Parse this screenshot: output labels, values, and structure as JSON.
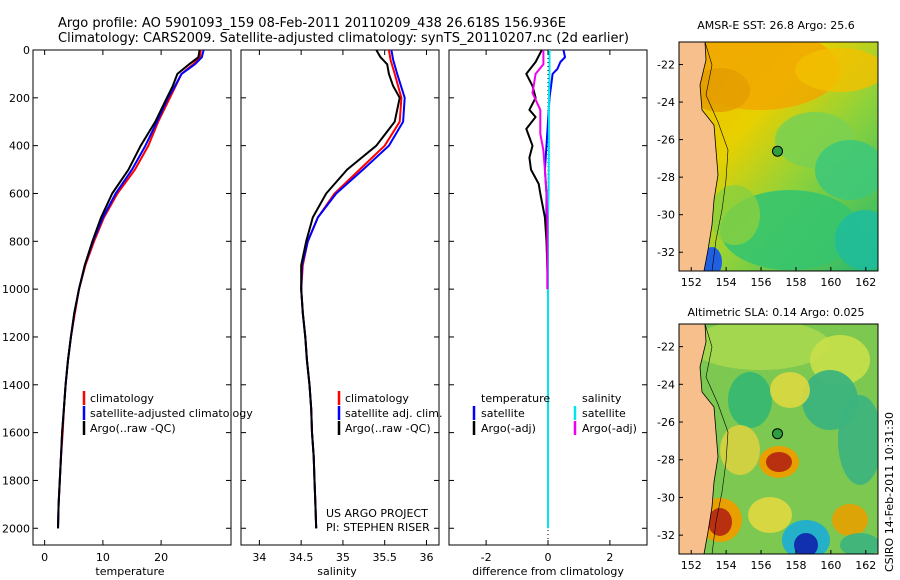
{
  "header": {
    "line1": "Argo profile: AO 5901093_159 08-Feb-2011 20110209_438 26.618S 156.936E",
    "line2": "Climatology: CARS2009. Satellite-adjusted climatology: synTS_20110207.nc (2d earlier)"
  },
  "credits": {
    "line1": "US ARGO PROJECT",
    "line2": "PI: STEPHEN RISER"
  },
  "timestamp": "CSIRO 14-Feb-2011 10:31:30",
  "colors": {
    "climatology": "#ff0000",
    "satellite": "#0000ff",
    "argo": "#000000",
    "satellite_salinity": "#00e5ee",
    "argo_salinity_diff": "#ee00ee",
    "land": "#f6bf8c"
  },
  "chart_data": [
    {
      "type": "line",
      "name": "temperature-profile",
      "xlabel": "temperature",
      "ylabel": "",
      "xlim": [
        -2,
        32
      ],
      "ylim": [
        2070,
        0
      ],
      "xticks": [
        0,
        10,
        20
      ],
      "yticks": [
        0,
        200,
        400,
        600,
        800,
        1000,
        1200,
        1400,
        1600,
        1800,
        2000
      ],
      "legend": [
        "climatology",
        "satellite-adjusted climatology",
        "Argo(..raw -QC)"
      ],
      "series": [
        {
          "name": "climatology",
          "color": "#ff0000",
          "points": [
            [
              26.8,
              0
            ],
            [
              26.7,
              30
            ],
            [
              25.5,
              60
            ],
            [
              23.5,
              100
            ],
            [
              22.5,
              150
            ],
            [
              21.5,
              200
            ],
            [
              19.5,
              300
            ],
            [
              17.8,
              400
            ],
            [
              15.5,
              500
            ],
            [
              12.5,
              600
            ],
            [
              10.2,
              700
            ],
            [
              8.5,
              800
            ],
            [
              7.0,
              900
            ],
            [
              5.9,
              1000
            ],
            [
              5.2,
              1100
            ],
            [
              4.5,
              1200
            ],
            [
              4.0,
              1300
            ],
            [
              3.6,
              1400
            ],
            [
              3.3,
              1500
            ],
            [
              3.1,
              1600
            ],
            [
              2.8,
              1700
            ],
            [
              2.6,
              1800
            ],
            [
              2.4,
              1900
            ],
            [
              2.3,
              2000
            ]
          ]
        },
        {
          "name": "satellite-adjusted climatology",
          "color": "#0000ff",
          "points": [
            [
              27.3,
              0
            ],
            [
              27.0,
              30
            ],
            [
              25.8,
              60
            ],
            [
              23.5,
              100
            ],
            [
              22.4,
              150
            ],
            [
              21.2,
              200
            ],
            [
              19.3,
              300
            ],
            [
              17.3,
              400
            ],
            [
              15.0,
              500
            ],
            [
              12.2,
              600
            ],
            [
              10.0,
              700
            ],
            [
              8.3,
              800
            ],
            [
              6.9,
              900
            ],
            [
              5.9,
              1000
            ],
            [
              5.1,
              1100
            ],
            [
              4.5,
              1200
            ],
            [
              4.0,
              1300
            ],
            [
              3.6,
              1400
            ],
            [
              3.3,
              1500
            ],
            [
              3.0,
              1600
            ],
            [
              2.8,
              1700
            ],
            [
              2.6,
              1800
            ],
            [
              2.4,
              1900
            ],
            [
              2.3,
              2000
            ]
          ]
        },
        {
          "name": "Argo(..raw -QC)",
          "color": "#000000",
          "points": [
            [
              26.6,
              0
            ],
            [
              26.4,
              30
            ],
            [
              24.8,
              60
            ],
            [
              22.8,
              100
            ],
            [
              22.0,
              150
            ],
            [
              21.0,
              200
            ],
            [
              19.0,
              300
            ],
            [
              16.5,
              400
            ],
            [
              14.4,
              500
            ],
            [
              11.6,
              600
            ],
            [
              9.7,
              700
            ],
            [
              8.2,
              800
            ],
            [
              6.9,
              900
            ],
            [
              5.9,
              1000
            ],
            [
              5.1,
              1100
            ],
            [
              4.5,
              1200
            ],
            [
              4.0,
              1300
            ],
            [
              3.6,
              1400
            ],
            [
              3.3,
              1500
            ],
            [
              3.0,
              1600
            ],
            [
              2.8,
              1700
            ],
            [
              2.6,
              1800
            ],
            [
              2.4,
              1900
            ],
            [
              2.3,
              2000
            ]
          ]
        }
      ]
    },
    {
      "type": "line",
      "name": "salinity-profile",
      "xlabel": "salinity",
      "ylabel": "",
      "xlim": [
        33.78,
        36.15
      ],
      "ylim": [
        2070,
        0
      ],
      "xticks": [
        34,
        34.5,
        35,
        35.5,
        36
      ],
      "legend": [
        "climatology",
        "satellite adj. clim.",
        "Argo(..raw -QC)"
      ],
      "series": [
        {
          "name": "climatology",
          "color": "#ff0000",
          "points": [
            [
              35.55,
              0
            ],
            [
              35.57,
              40
            ],
            [
              35.62,
              100
            ],
            [
              35.7,
              200
            ],
            [
              35.68,
              300
            ],
            [
              35.5,
              400
            ],
            [
              35.2,
              500
            ],
            [
              34.9,
              600
            ],
            [
              34.7,
              700
            ],
            [
              34.58,
              800
            ],
            [
              34.52,
              900
            ],
            [
              34.5,
              1000
            ],
            [
              34.52,
              1100
            ],
            [
              34.55,
              1200
            ],
            [
              34.57,
              1300
            ],
            [
              34.6,
              1400
            ],
            [
              34.62,
              1500
            ],
            [
              34.63,
              1600
            ],
            [
              34.65,
              1700
            ],
            [
              34.66,
              1800
            ],
            [
              34.67,
              1900
            ],
            [
              34.68,
              2000
            ]
          ]
        },
        {
          "name": "satellite adj. clim.",
          "color": "#0000ff",
          "points": [
            [
              35.58,
              0
            ],
            [
              35.6,
              40
            ],
            [
              35.65,
              100
            ],
            [
              35.74,
              200
            ],
            [
              35.72,
              300
            ],
            [
              35.55,
              400
            ],
            [
              35.24,
              500
            ],
            [
              34.92,
              600
            ],
            [
              34.7,
              700
            ],
            [
              34.58,
              800
            ],
            [
              34.51,
              900
            ],
            [
              34.5,
              1000
            ],
            [
              34.52,
              1100
            ],
            [
              34.55,
              1200
            ],
            [
              34.57,
              1300
            ],
            [
              34.6,
              1400
            ],
            [
              34.62,
              1500
            ],
            [
              34.63,
              1600
            ],
            [
              34.65,
              1700
            ],
            [
              34.66,
              1800
            ],
            [
              34.67,
              1900
            ],
            [
              34.68,
              2000
            ]
          ]
        },
        {
          "name": "Argo(..raw -QC)",
          "color": "#000000",
          "points": [
            [
              35.4,
              0
            ],
            [
              35.45,
              30
            ],
            [
              35.53,
              60
            ],
            [
              35.55,
              100
            ],
            [
              35.6,
              150
            ],
            [
              35.68,
              200
            ],
            [
              35.62,
              300
            ],
            [
              35.4,
              400
            ],
            [
              35.05,
              500
            ],
            [
              34.8,
              600
            ],
            [
              34.64,
              700
            ],
            [
              34.56,
              800
            ],
            [
              34.5,
              900
            ],
            [
              34.5,
              1000
            ],
            [
              34.52,
              1100
            ],
            [
              34.55,
              1200
            ],
            [
              34.57,
              1300
            ],
            [
              34.6,
              1400
            ],
            [
              34.62,
              1500
            ],
            [
              34.63,
              1600
            ],
            [
              34.65,
              1700
            ],
            [
              34.66,
              1800
            ],
            [
              34.67,
              1900
            ],
            [
              34.68,
              2000
            ]
          ]
        }
      ]
    },
    {
      "type": "line",
      "name": "difference-profile",
      "xlabel": "difference from climatology",
      "ylabel": "",
      "xlim": [
        -3.2,
        3.2
      ],
      "ylim": [
        2070,
        0
      ],
      "xticks": [
        -2,
        0,
        2
      ],
      "legend_headers": [
        "temperature",
        "salinity"
      ],
      "legend": [
        "satellite",
        "Argo(-adj)",
        "satellite",
        "Argo(-adj)"
      ],
      "zero_line": true,
      "series": [
        {
          "name": "temperature satellite",
          "color": "#0000ff",
          "points": [
            [
              0.5,
              0
            ],
            [
              0.55,
              30
            ],
            [
              0.4,
              50
            ],
            [
              0.3,
              80
            ],
            [
              0.15,
              100
            ],
            [
              0.1,
              150
            ],
            [
              0.05,
              200
            ],
            [
              0.0,
              300
            ],
            [
              -0.05,
              400
            ],
            [
              -0.1,
              500
            ],
            [
              -0.05,
              600
            ],
            [
              -0.05,
              700
            ],
            [
              -0.02,
              800
            ],
            [
              -0.02,
              900
            ],
            [
              -0.02,
              1000
            ]
          ]
        },
        {
          "name": "temperature Argo(-adj)",
          "color": "#000000",
          "points": [
            [
              -0.2,
              0
            ],
            [
              -0.4,
              50
            ],
            [
              -0.7,
              100
            ],
            [
              -0.5,
              150
            ],
            [
              -0.4,
              200
            ],
            [
              -0.6,
              250
            ],
            [
              -0.4,
              280
            ],
            [
              -0.7,
              330
            ],
            [
              -0.5,
              400
            ],
            [
              -0.6,
              450
            ],
            [
              -0.55,
              500
            ],
            [
              -0.3,
              560
            ],
            [
              -0.25,
              600
            ],
            [
              -0.1,
              700
            ],
            [
              -0.05,
              800
            ],
            [
              0,
              1000
            ]
          ]
        },
        {
          "name": "salinity satellite",
          "color": "#00e5ee",
          "points": [
            [
              0.05,
              0
            ],
            [
              0.05,
              100
            ],
            [
              0.03,
              200
            ],
            [
              0.03,
              400
            ],
            [
              0.02,
              600
            ],
            [
              0.0,
              700
            ],
            [
              0.0,
              1000
            ],
            [
              0.0,
              2000
            ]
          ]
        },
        {
          "name": "salinity Argo(-adj)",
          "color": "#ee00ee",
          "points": [
            [
              -0.15,
              0
            ],
            [
              -0.15,
              60
            ],
            [
              -0.4,
              100
            ],
            [
              -0.5,
              180
            ],
            [
              -0.25,
              250
            ],
            [
              -0.25,
              300
            ],
            [
              -0.25,
              350
            ],
            [
              -0.15,
              420
            ],
            [
              -0.1,
              500
            ],
            [
              -0.05,
              600
            ],
            [
              -0.02,
              700
            ],
            [
              -0.02,
              800
            ],
            [
              -0.02,
              900
            ],
            [
              -0.02,
              1000
            ]
          ]
        }
      ]
    },
    {
      "type": "heatmap",
      "name": "sst-map",
      "title": "AMSR-E SST: 26.8  Argo: 25.6",
      "xlim": [
        151.3,
        162.7
      ],
      "ylim": [
        -33.0,
        -20.8
      ],
      "xticks": [
        152,
        154,
        156,
        158,
        160,
        162
      ],
      "yticks": [
        -22,
        -24,
        -26,
        -28,
        -30,
        -32
      ],
      "float_position": [
        156.94,
        -26.62
      ]
    },
    {
      "type": "heatmap",
      "name": "sla-map",
      "title": "Altimetric SLA: 0.14  Argo: 0.025",
      "xlim": [
        151.3,
        162.7
      ],
      "ylim": [
        -33.0,
        -20.8
      ],
      "xticks": [
        152,
        154,
        156,
        158,
        160,
        162
      ],
      "yticks": [
        -22,
        -24,
        -26,
        -28,
        -30,
        -32
      ],
      "float_position": [
        156.94,
        -26.62
      ]
    }
  ]
}
